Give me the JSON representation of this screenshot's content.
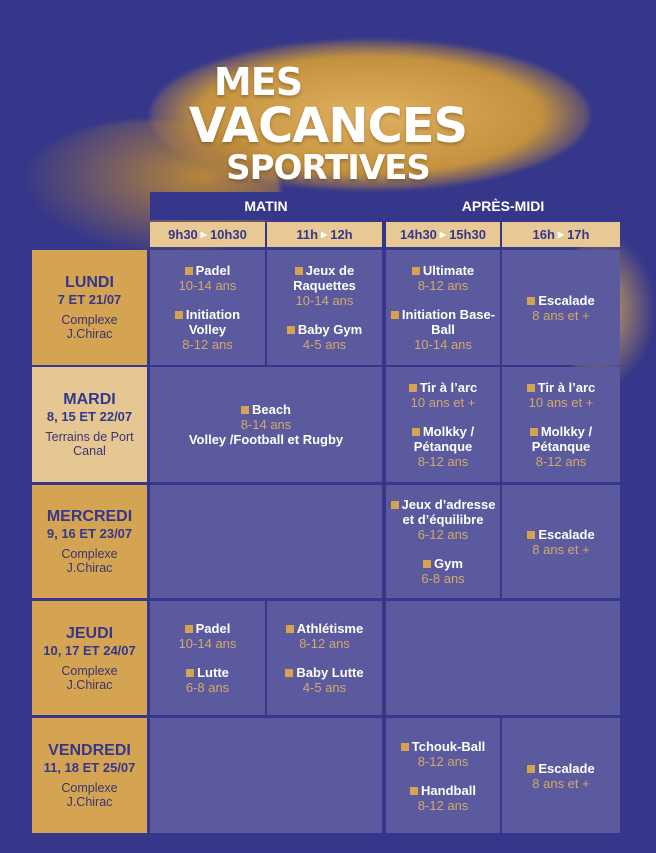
{
  "title": {
    "line1": "MES",
    "line2": "VACANCES",
    "line3": "SPORTIVES"
  },
  "colors": {
    "background": "#36378a",
    "gold": "#d4a452",
    "cell": "#5b5a9e",
    "header_light": "#e8c995"
  },
  "headers": {
    "periods": [
      "MATIN",
      "APRÈS-MIDI"
    ],
    "slots": [
      {
        "from": "9h30",
        "to": "10h30"
      },
      {
        "from": "11h",
        "to": "12h"
      },
      {
        "from": "14h30",
        "to": "15h30"
      },
      {
        "from": "16h",
        "to": "17h"
      }
    ],
    "arrow_icon": "▶"
  },
  "days": [
    {
      "name": "LUNDI",
      "dates": "7 ET 21/07",
      "location": "Complexe J.Chirac"
    },
    {
      "name": "MARDI",
      "dates": "8, 15 ET 22/07",
      "location": "Terrains de Port Canal"
    },
    {
      "name": "MERCREDI",
      "dates": "9, 16 ET 23/07",
      "location": "Complexe J.Chirac"
    },
    {
      "name": "JEUDI",
      "dates": "10, 17 ET 24/07",
      "location": "Complexe J.Chirac"
    },
    {
      "name": "VENDREDI",
      "dates": "11, 18 ET 25/07",
      "location": "Complexe J.Chirac"
    }
  ],
  "cells": [
    {
      "row": 0,
      "col": 0,
      "span": 1,
      "items": [
        {
          "name": "Padel",
          "age": "10-14 ans"
        },
        {
          "name": "Initiation Volley",
          "age": "8-12 ans"
        }
      ]
    },
    {
      "row": 0,
      "col": 1,
      "span": 1,
      "items": [
        {
          "name": "Jeux de Raquettes",
          "age": "10-14 ans"
        },
        {
          "name": "Baby Gym",
          "age": "4-5 ans"
        }
      ]
    },
    {
      "row": 0,
      "col": 2,
      "span": 1,
      "items": [
        {
          "name": "Ultimate",
          "age": "8-12 ans"
        },
        {
          "name": "Initiation Base-Ball",
          "age": "10-14 ans"
        }
      ]
    },
    {
      "row": 0,
      "col": 3,
      "span": 1,
      "items": [
        {
          "name": "Escalade",
          "age": "8 ans et +"
        }
      ]
    },
    {
      "row": 1,
      "col": 0,
      "span": 2,
      "items": [
        {
          "name": "Beach",
          "age": "8-14 ans",
          "note": "Volley /Football et Rugby"
        }
      ]
    },
    {
      "row": 1,
      "col": 2,
      "span": 1,
      "items": [
        {
          "name": "Tir à l’arc",
          "age": "10 ans et +"
        },
        {
          "name": "Molkky / Pétanque",
          "age": "8-12 ans"
        }
      ]
    },
    {
      "row": 1,
      "col": 3,
      "span": 1,
      "items": [
        {
          "name": "Tir à l’arc",
          "age": "10 ans et +"
        },
        {
          "name": "Molkky / Pétanque",
          "age": "8-12 ans"
        }
      ]
    },
    {
      "row": 2,
      "col": 0,
      "span": 2,
      "items": []
    },
    {
      "row": 2,
      "col": 2,
      "span": 1,
      "items": [
        {
          "name": "Jeux d’adresse et d’équilibre",
          "age": "6-12 ans"
        },
        {
          "name": "Gym",
          "age": "6-8 ans"
        }
      ]
    },
    {
      "row": 2,
      "col": 3,
      "span": 1,
      "items": [
        {
          "name": "Escalade",
          "age": "8 ans et +"
        }
      ]
    },
    {
      "row": 3,
      "col": 0,
      "span": 1,
      "items": [
        {
          "name": "Padel",
          "age": "10-14 ans"
        },
        {
          "name": "Lutte",
          "age": "6-8 ans"
        }
      ]
    },
    {
      "row": 3,
      "col": 1,
      "span": 1,
      "items": [
        {
          "name": "Athlétisme",
          "age": "8-12 ans"
        },
        {
          "name": "Baby Lutte",
          "age": "4-5 ans"
        }
      ]
    },
    {
      "row": 3,
      "col": 2,
      "span": 2,
      "items": []
    },
    {
      "row": 4,
      "col": 0,
      "span": 2,
      "items": []
    },
    {
      "row": 4,
      "col": 2,
      "span": 1,
      "items": [
        {
          "name": "Tchouk-Ball",
          "age": "8-12 ans"
        },
        {
          "name": "Handball",
          "age": "8-12 ans"
        }
      ]
    },
    {
      "row": 4,
      "col": 3,
      "span": 1,
      "items": [
        {
          "name": "Escalade",
          "age": "8 ans et +"
        }
      ]
    }
  ]
}
